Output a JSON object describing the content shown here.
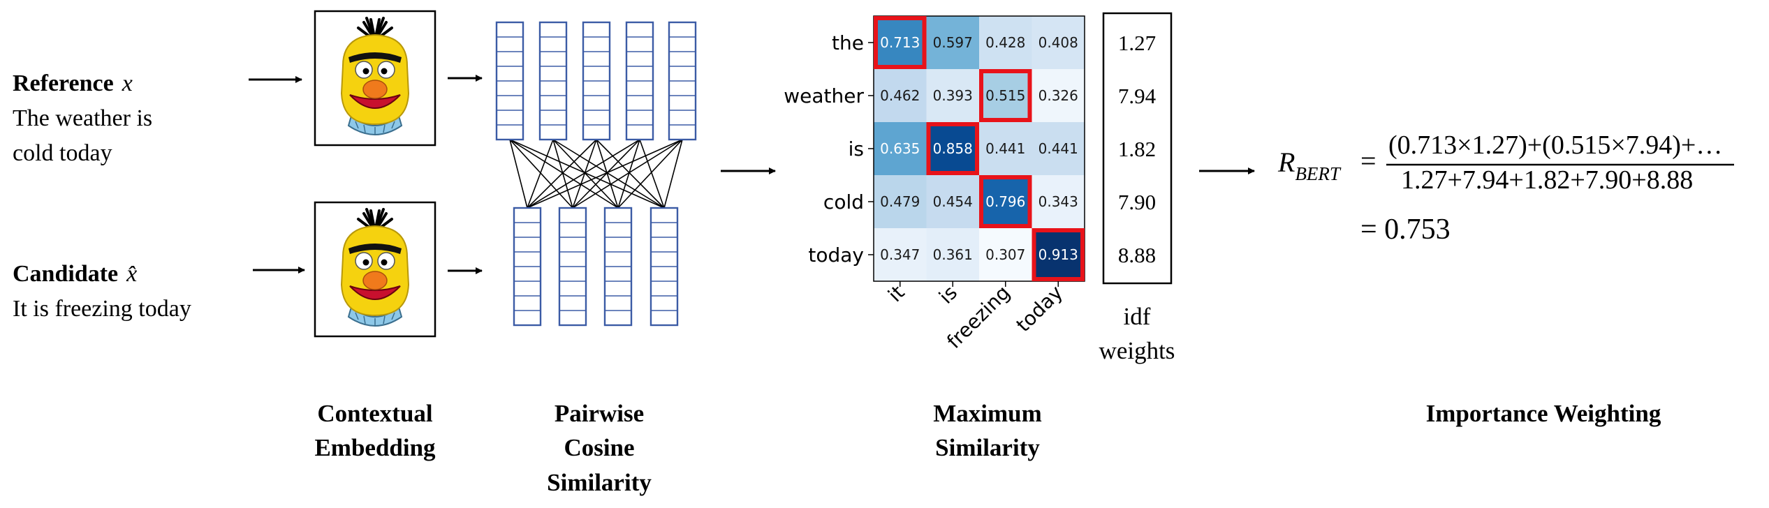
{
  "inputs": {
    "reference": {
      "label": "Reference",
      "var": "x",
      "text_line1": "The weather is",
      "text_line2": "cold today"
    },
    "candidate": {
      "label": "Candidate",
      "var": "x̂",
      "text_line1": "It is freezing today"
    }
  },
  "icons": {
    "reference_model": "bert-muppet-icon",
    "candidate_model": "bert-muppet-icon"
  },
  "captions": {
    "contextual_line1": "Contextual",
    "contextual_line2": "Embedding",
    "pairwise_line1": "Pairwise",
    "pairwise_line2": "Cosine",
    "pairwise_line3": "Similarity",
    "maximum_line1": "Maximum",
    "maximum_line2": "Similarity",
    "importance": "Importance Weighting"
  },
  "formula": {
    "lhs_symbol": "R",
    "lhs_subscript": "BERT",
    "equals": "=",
    "numerator": "(0.713×1.27)+(0.515×7.94)+…",
    "denominator": "1.27+7.94+1.82+7.90+8.88",
    "result": "= 0.753"
  },
  "idf": {
    "label_line1": "idf",
    "label_line2": "weights",
    "values": [
      "1.27",
      "7.94",
      "1.82",
      "7.90",
      "8.88"
    ]
  },
  "chart_data": {
    "type": "heatmap",
    "title": "Maximum Similarity",
    "row_labels": [
      "the",
      "weather",
      "is",
      "cold",
      "today"
    ],
    "col_labels": [
      "it",
      "is",
      "freezing",
      "today"
    ],
    "values": [
      [
        0.713,
        0.597,
        0.428,
        0.408
      ],
      [
        0.462,
        0.393,
        0.515,
        0.326
      ],
      [
        0.635,
        0.858,
        0.441,
        0.441
      ],
      [
        0.479,
        0.454,
        0.796,
        0.343
      ],
      [
        0.347,
        0.361,
        0.307,
        0.913
      ]
    ],
    "value_labels": [
      [
        "0.713",
        "0.597",
        "0.428",
        "0.408"
      ],
      [
        "0.462",
        "0.393",
        "0.515",
        "0.326"
      ],
      [
        "0.635",
        "0.858",
        "0.441",
        "0.441"
      ],
      [
        "0.479",
        "0.454",
        "0.796",
        "0.343"
      ],
      [
        "0.347",
        "0.361",
        "0.307",
        "0.913"
      ]
    ],
    "highlighted_max_col_per_row": [
      0,
      2,
      1,
      2,
      3
    ],
    "colormap": "Blues",
    "vmin": 0.3,
    "vmax": 0.92,
    "colors": {
      "highlight": "#e8131a",
      "low": "#f3f8fe",
      "high": "#08306b"
    }
  },
  "colors": {
    "embedding_stroke": "#3b5ba5",
    "arrow": "#000000",
    "bert_face": "#f5d20f",
    "bert_nose": "#f07a1c",
    "bert_mouth": "#c8102e",
    "bert_collar": "#8ec8e8"
  }
}
